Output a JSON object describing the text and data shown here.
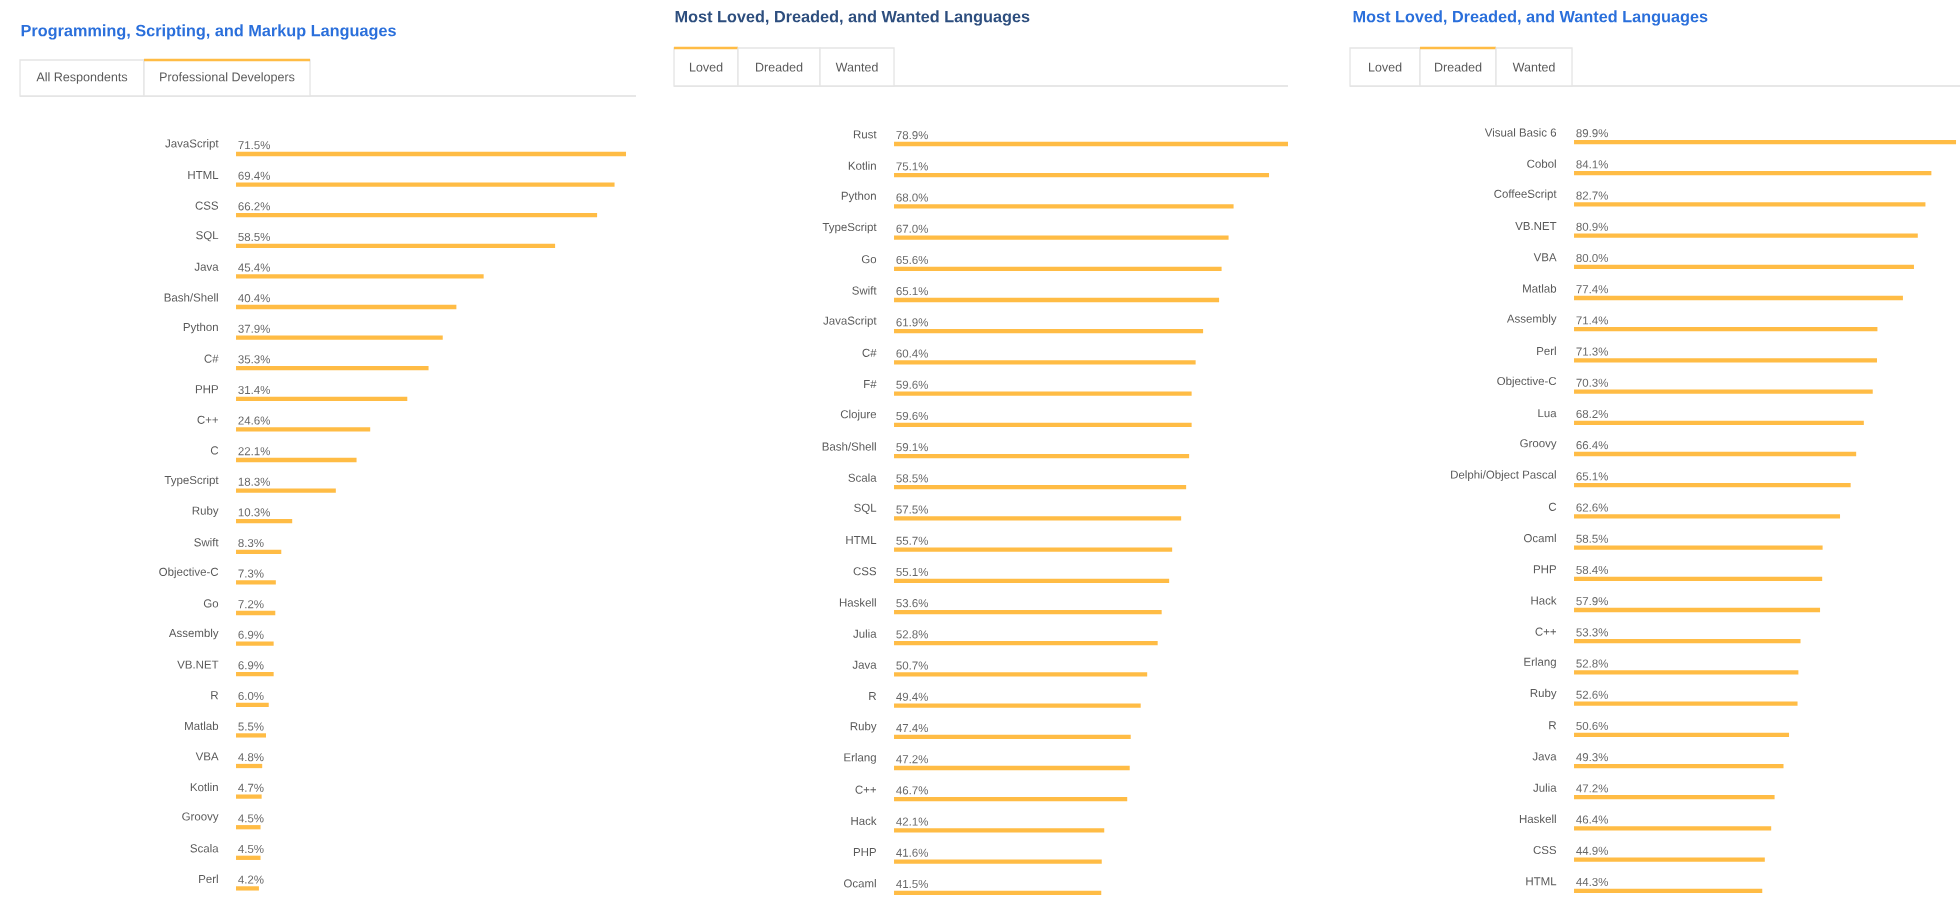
{
  "chart_data": [
    {
      "type": "bar",
      "orientation": "horizontal",
      "title": "Programming, Scripting, and Markup Languages",
      "annotations": [
        "All Respondents",
        "Professional Developers"
      ],
      "color": "#ffbc45",
      "categories": [
        "JavaScript",
        "HTML",
        "CSS",
        "SQL",
        "Java",
        "Bash/Shell",
        "Python",
        "C#",
        "PHP",
        "C++",
        "C",
        "TypeScript",
        "Ruby",
        "Swift",
        "Objective-C",
        "Go",
        "Assembly",
        "VB.NET",
        "R",
        "Matlab",
        "VBA",
        "Kotlin",
        "Groovy",
        "Scala",
        "Perl"
      ],
      "values": [
        71.5,
        69.4,
        66.2,
        58.5,
        45.4,
        40.4,
        37.9,
        35.3,
        31.4,
        24.6,
        22.1,
        18.3,
        10.3,
        8.3,
        7.3,
        7.2,
        6.9,
        6.9,
        6.0,
        5.5,
        4.8,
        4.7,
        4.5,
        4.5,
        4.2
      ],
      "value_labels": [
        "71.5%",
        "69.4%",
        "66.2%",
        "58.5%",
        "45.4%",
        "40.4%",
        "37.9%",
        "35.3%",
        "31.4%",
        "24.6%",
        "22.1%",
        "18.3%",
        "10.3%",
        "8.3%",
        "7.3%",
        "7.2%",
        "6.9%",
        "6.9%",
        "6.0%",
        "5.5%",
        "4.8%",
        "4.7%",
        "4.5%",
        "4.5%",
        "4.2%"
      ]
    },
    {
      "type": "bar",
      "orientation": "horizontal",
      "title": "Most Loved, Dreaded, and Wanted Languages",
      "annotations": [
        "Loved",
        "Dreaded",
        "Wanted"
      ],
      "color": "#ffbc45",
      "categories": [
        "Rust",
        "Kotlin",
        "Python",
        "TypeScript",
        "Go",
        "Swift",
        "JavaScript",
        "C#",
        "F#",
        "Clojure",
        "Bash/Shell",
        "Scala",
        "SQL",
        "HTML",
        "CSS",
        "Haskell",
        "Julia",
        "Java",
        "R",
        "Ruby",
        "Erlang",
        "C++",
        "Hack",
        "PHP",
        "Ocaml"
      ],
      "values": [
        78.9,
        75.1,
        68.0,
        67.0,
        65.6,
        65.1,
        61.9,
        60.4,
        59.6,
        59.6,
        59.1,
        58.5,
        57.5,
        55.7,
        55.1,
        53.6,
        52.8,
        50.7,
        49.4,
        47.4,
        47.2,
        46.7,
        42.1,
        41.6,
        41.5
      ],
      "value_labels": [
        "78.9%",
        "75.1%",
        "68.0%",
        "67.0%",
        "65.6%",
        "65.1%",
        "61.9%",
        "60.4%",
        "59.6%",
        "59.6%",
        "59.1%",
        "58.5%",
        "57.5%",
        "55.7%",
        "55.1%",
        "53.6%",
        "52.8%",
        "50.7%",
        "49.4%",
        "47.4%",
        "47.2%",
        "46.7%",
        "42.1%",
        "41.6%",
        "41.5%"
      ]
    },
    {
      "type": "bar",
      "orientation": "horizontal",
      "title": "Most Loved, Dreaded, and Wanted Languages",
      "annotations": [
        "Loved",
        "Dreaded",
        "Wanted"
      ],
      "color": "#ffbc45",
      "categories": [
        "Visual Basic 6",
        "Cobol",
        "CoffeeScript",
        "VB.NET",
        "VBA",
        "Matlab",
        "Assembly",
        "Perl",
        "Objective-C",
        "Lua",
        "Groovy",
        "Delphi/Object Pascal",
        "C",
        "Ocaml",
        "PHP",
        "Hack",
        "C++",
        "Erlang",
        "Ruby",
        "R",
        "Java",
        "Julia",
        "Haskell",
        "CSS",
        "HTML"
      ],
      "values": [
        89.9,
        84.1,
        82.7,
        80.9,
        80.0,
        77.4,
        71.4,
        71.3,
        70.3,
        68.2,
        66.4,
        65.1,
        62.6,
        58.5,
        58.4,
        57.9,
        53.3,
        52.8,
        52.6,
        50.6,
        49.3,
        47.2,
        46.4,
        44.9,
        44.3
      ],
      "value_labels": [
        "89.9%",
        "84.1%",
        "82.7%",
        "80.9%",
        "80.0%",
        "77.4%",
        "71.4%",
        "71.3%",
        "70.3%",
        "68.2%",
        "66.4%",
        "65.1%",
        "62.6%",
        "58.5%",
        "58.4%",
        "57.9%",
        "53.3%",
        "52.8%",
        "52.6%",
        "50.6%",
        "49.3%",
        "47.2%",
        "46.4%",
        "44.9%",
        "44.3%"
      ]
    }
  ]
}
